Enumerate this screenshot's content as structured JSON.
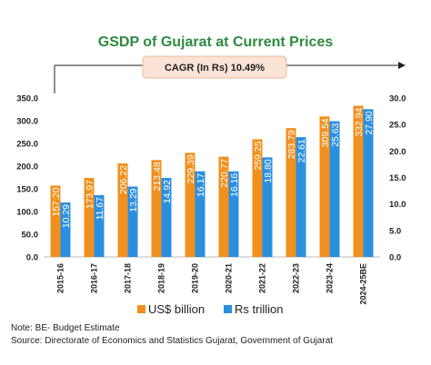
{
  "chart_data": {
    "type": "bar",
    "title": "GSDP of Gujarat at Current Prices",
    "annotation": "CAGR (In Rs) 10.49%",
    "categories": [
      "2015-16",
      "2016-17",
      "2017-18",
      "2018-19",
      "2019-20",
      "2020-21",
      "2021-22",
      "2022-23",
      "2023-24",
      "2024-25BE"
    ],
    "series": [
      {
        "name": "US$ billion",
        "axis": "left",
        "color": "#f0901e",
        "values": [
          157.2,
          173.97,
          206.22,
          213.48,
          229.39,
          220.77,
          259.25,
          283.79,
          309.54,
          332.94
        ],
        "labels": [
          "157.20",
          "173.97",
          "206.22",
          "213.48",
          "229.39",
          "220.77",
          "259.25",
          "283.79",
          "309.54",
          "332.94"
        ]
      },
      {
        "name": "Rs trillion",
        "axis": "right",
        "color": "#2b8fe0",
        "values": [
          10.29,
          11.67,
          13.29,
          14.92,
          16.17,
          16.16,
          18.8,
          22.61,
          25.63,
          27.9
        ],
        "labels": [
          "10.29",
          "11.67",
          "13.29",
          "14.92",
          "16.17",
          "16.16",
          "18.80",
          "22.61",
          "25.63",
          "27.90"
        ]
      }
    ],
    "y_left": {
      "min": 0,
      "max": 350,
      "step": 50,
      "tick_labels": [
        "0.0",
        "50.0",
        "100.0",
        "150.0",
        "200.0",
        "250.0",
        "300.0",
        "350.0"
      ]
    },
    "y_right": {
      "min": 0,
      "max": 30,
      "step": 5,
      "tick_labels": [
        "0.0",
        "5.0",
        "10.0",
        "15.0",
        "20.0",
        "25.0",
        "30.0"
      ]
    },
    "grid": false,
    "legend": "bottom"
  },
  "notes": [
    "Note: BE- Budget Estimate",
    "Source: Directorate of Economics and Statistics Gujarat, Government of Gujarat"
  ],
  "colors": {
    "title": "#2e8b3e",
    "orange": "#f0901e",
    "blue": "#2b8fe0",
    "cagr_box": "#fbe3d5"
  }
}
